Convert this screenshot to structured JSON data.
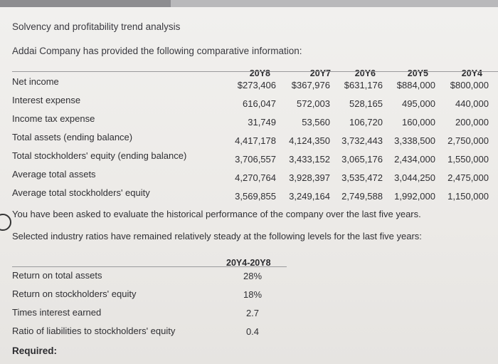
{
  "header": {
    "title": "Solvency and profitability trend analysis",
    "intro": "Addai Company has provided the following comparative information:"
  },
  "years": [
    "20Y8",
    "20Y7",
    "20Y6",
    "20Y5",
    "20Y4"
  ],
  "rows": [
    {
      "label": "Net income",
      "values": [
        "$273,406",
        "$367,976",
        "$631,176",
        "$884,000",
        "$800,000"
      ]
    },
    {
      "label": "Interest expense",
      "values": [
        "616,047",
        "572,003",
        "528,165",
        "495,000",
        "440,000"
      ]
    },
    {
      "label": "Income tax expense",
      "values": [
        "31,749",
        "53,560",
        "106,720",
        "160,000",
        "200,000"
      ]
    },
    {
      "label": "Total assets (ending balance)",
      "values": [
        "4,417,178",
        "4,124,350",
        "3,732,443",
        "3,338,500",
        "2,750,000"
      ]
    },
    {
      "label": "Total stockholders' equity (ending balance)",
      "values": [
        "3,706,557",
        "3,433,152",
        "3,065,176",
        "2,434,000",
        "1,550,000"
      ]
    },
    {
      "label": "Average total assets",
      "values": [
        "4,270,764",
        "3,928,397",
        "3,535,472",
        "3,044,250",
        "2,475,000"
      ]
    },
    {
      "label": "Average total stockholders' equity",
      "values": [
        "3,569,855",
        "3,249,164",
        "2,749,588",
        "1,992,000",
        "1,150,000"
      ]
    }
  ],
  "notes": {
    "evaluate": "You have been asked to evaluate the historical performance of the company over the last five years.",
    "selected": "Selected industry ratios have remained relatively steady at the following levels for the last five years:"
  },
  "industry": {
    "header": "20Y4-20Y8",
    "ratios": [
      {
        "label": "Return on total assets",
        "value": "28%"
      },
      {
        "label": "Return on stockholders' equity",
        "value": "18%"
      },
      {
        "label": "Times interest earned",
        "value": "2.7"
      },
      {
        "label": "Ratio of liabilities to stockholders' equity",
        "value": "0.4"
      }
    ]
  },
  "required_label": "Required:"
}
